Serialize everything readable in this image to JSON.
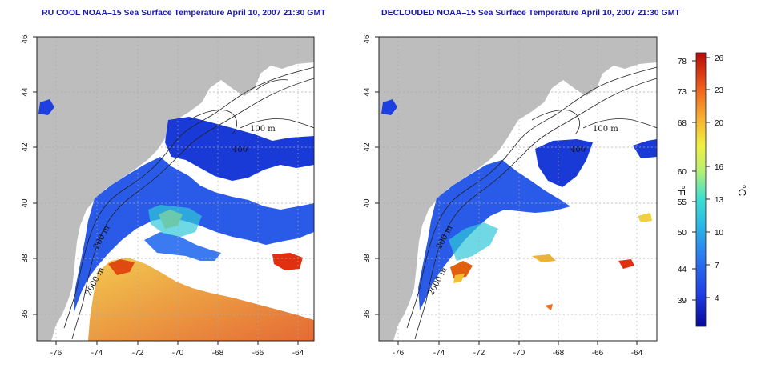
{
  "titles": {
    "left": "RU COOL NOAA–15 Sea Surface Temperature April 10, 2007 21:30 GMT",
    "right": "DECLOUDED NOAA–15 Sea Surface Temperature April 10, 2007 21:30 GMT"
  },
  "axes": {
    "x_ticks": [
      "-76",
      "-74",
      "-72",
      "-70",
      "-68",
      "-66",
      "-64"
    ],
    "y_ticks": [
      "36",
      "38",
      "40",
      "42",
      "44",
      "46"
    ],
    "lon_range": [
      -77,
      -63
    ],
    "lat_range": [
      35,
      46
    ]
  },
  "contour_labels": [
    "100 m",
    "400",
    "200 m",
    "2000 m"
  ],
  "colorbar": {
    "fahrenheit_ticks": [
      "78",
      "73",
      "68",
      "60",
      "55",
      "50",
      "44",
      "39"
    ],
    "celsius_ticks": [
      "26",
      "23",
      "20",
      "16",
      "13",
      "10",
      "7",
      "4"
    ],
    "fahrenheit_unit": "°F",
    "celsius_unit": "°C",
    "colors": [
      "#08089a",
      "#1f3fe6",
      "#2a78f0",
      "#2ab8e8",
      "#3fe0d0",
      "#b8f070",
      "#f0f040",
      "#f8b030",
      "#f06018",
      "#b80808"
    ]
  },
  "colors": {
    "land": "#bdbdbd",
    "ocean_cloud": "#ffffff",
    "title": "#1a1aa8"
  }
}
